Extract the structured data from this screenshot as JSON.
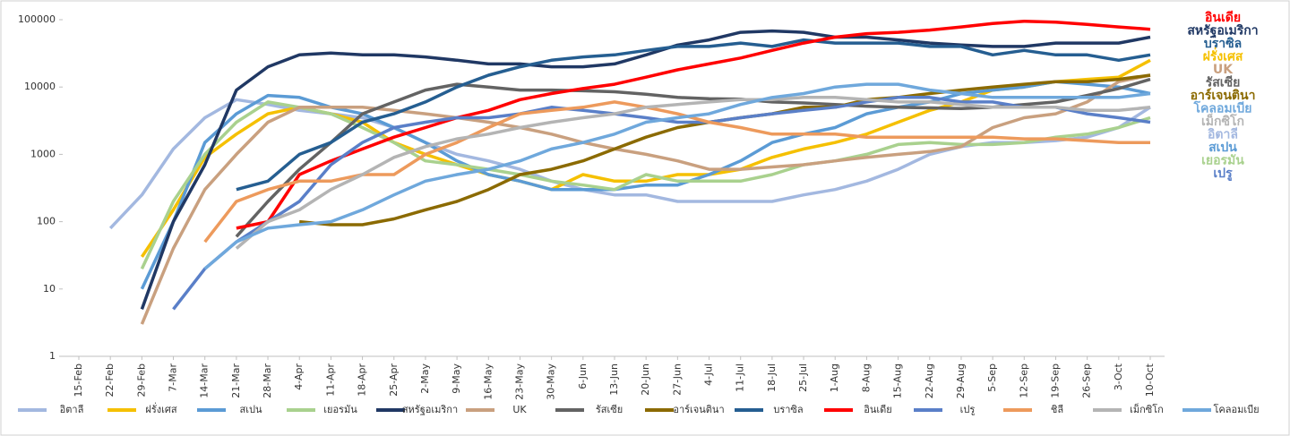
{
  "chart_data": {
    "type": "line",
    "log": true,
    "grid": false,
    "legend": "bottom",
    "x": [
      "15-Feb",
      "22-Feb",
      "29-Feb",
      "7-Mar",
      "14-Mar",
      "21-Mar",
      "28-Mar",
      "4-Apr",
      "11-Apr",
      "18-Apr",
      "25-Apr",
      "2-May",
      "9-May",
      "16-May",
      "23-May",
      "30-May",
      "6-Jun",
      "13-Jun",
      "20-Jun",
      "27-Jun",
      "4-Jul",
      "11-Jul",
      "18-Jul",
      "25-Jul",
      "1-Aug",
      "8-Aug",
      "15-Aug",
      "22-Aug",
      "29-Aug",
      "5-Sep",
      "12-Sep",
      "19-Sep",
      "26-Sep",
      "3-Oct",
      "10-Oct"
    ],
    "ylim": [
      1,
      100000
    ],
    "yticks": [
      1,
      10,
      100,
      1000,
      10000,
      100000
    ],
    "series": [
      {
        "name": "อิตาลี",
        "color": "#a3b8e0",
        "values": [
          null,
          80,
          250,
          1200,
          3500,
          6500,
          5500,
          4500,
          4000,
          3500,
          2500,
          1500,
          1000,
          800,
          600,
          400,
          300,
          250,
          250,
          200,
          200,
          200,
          200,
          250,
          300,
          400,
          600,
          1000,
          1300,
          1500,
          1500,
          1600,
          1800,
          2500,
          5000
        ]
      },
      {
        "name": "ฝรั่งเศส",
        "color": "#f5c000",
        "values": [
          null,
          null,
          30,
          150,
          900,
          2000,
          4000,
          5000,
          4000,
          3000,
          1500,
          1000,
          700,
          500,
          400,
          300,
          500,
          400,
          400,
          500,
          500,
          600,
          900,
          1200,
          1500,
          2000,
          3000,
          4500,
          6000,
          9000,
          10000,
          12000,
          13000,
          14000,
          25000
        ]
      },
      {
        "name": "สเปน",
        "color": "#5b9bd5",
        "values": [
          null,
          null,
          10,
          100,
          1500,
          4000,
          7500,
          7000,
          5000,
          4000,
          2500,
          1500,
          800,
          500,
          400,
          300,
          300,
          300,
          350,
          350,
          500,
          800,
          1500,
          2000,
          2500,
          4000,
          5000,
          6000,
          8000,
          9000,
          10000,
          12000,
          11000,
          10000,
          8000
        ]
      },
      {
        "name": "เยอรมัน",
        "color": "#a9d18e",
        "values": [
          null,
          null,
          20,
          200,
          1000,
          3000,
          6000,
          5000,
          4000,
          2500,
          1500,
          800,
          700,
          600,
          500,
          400,
          350,
          300,
          500,
          400,
          400,
          400,
          500,
          700,
          800,
          1000,
          1400,
          1500,
          1400,
          1400,
          1500,
          1800,
          2000,
          2500,
          3500
        ]
      },
      {
        "name": "สหรัฐอเมริกา",
        "color": "#203864",
        "values": [
          null,
          null,
          5,
          100,
          700,
          9000,
          20000,
          30000,
          32000,
          30000,
          30000,
          28000,
          25000,
          22000,
          22000,
          20000,
          20000,
          22000,
          30000,
          42000,
          50000,
          65000,
          68000,
          65000,
          55000,
          55000,
          50000,
          45000,
          42000,
          40000,
          40000,
          45000,
          45000,
          45000,
          55000
        ]
      },
      {
        "name": "UK",
        "color": "#c9a07f",
        "values": [
          null,
          null,
          3,
          40,
          300,
          1000,
          3000,
          5000,
          5000,
          5000,
          4500,
          4000,
          3500,
          3000,
          2500,
          2000,
          1500,
          1200,
          1000,
          800,
          600,
          600,
          650,
          700,
          800,
          900,
          1000,
          1100,
          1300,
          2500,
          3500,
          4000,
          6000,
          12000,
          15000
        ]
      },
      {
        "name": "รัสเซีย",
        "color": "#636363",
        "values": [
          null,
          null,
          null,
          null,
          null,
          60,
          200,
          600,
          1500,
          4000,
          6000,
          9000,
          11000,
          10000,
          9000,
          9000,
          8800,
          8500,
          7800,
          7000,
          6700,
          6600,
          6000,
          5800,
          5500,
          5200,
          5000,
          4900,
          4800,
          5000,
          5500,
          6000,
          7500,
          9500,
          13000
        ]
      },
      {
        "name": "อาร์เจนตินา",
        "color": "#8b6a00",
        "values": [
          null,
          null,
          null,
          null,
          null,
          null,
          null,
          100,
          90,
          90,
          110,
          150,
          200,
          300,
          500,
          600,
          800,
          1200,
          1800,
          2500,
          3000,
          3500,
          4000,
          5000,
          5000,
          6500,
          7000,
          8000,
          9000,
          10000,
          11000,
          12000,
          12000,
          13000,
          15000
        ]
      },
      {
        "name": "บราซิล",
        "color": "#255e91",
        "values": [
          null,
          null,
          null,
          null,
          null,
          300,
          400,
          1000,
          1500,
          3000,
          4000,
          6000,
          10000,
          15000,
          20000,
          25000,
          28000,
          30000,
          35000,
          40000,
          40000,
          45000,
          40000,
          50000,
          45000,
          45000,
          45000,
          40000,
          40000,
          30000,
          35000,
          30000,
          30000,
          25000,
          30000
        ]
      },
      {
        "name": "อินเดีย",
        "color": "#ff0000",
        "values": [
          null,
          null,
          null,
          null,
          null,
          80,
          100,
          500,
          800,
          1200,
          1800,
          2500,
          3500,
          4500,
          6500,
          8000,
          9500,
          11000,
          14000,
          18000,
          22000,
          27000,
          35000,
          45000,
          55000,
          62000,
          65000,
          70000,
          78000,
          88000,
          95000,
          92000,
          85000,
          78000,
          72000
        ]
      },
      {
        "name": "เปรู",
        "color": "#5a7fc8",
        "values": [
          null,
          null,
          null,
          5,
          20,
          50,
          100,
          200,
          700,
          1500,
          2500,
          3000,
          3500,
          3500,
          4000,
          5000,
          4500,
          4000,
          3500,
          3000,
          3000,
          3500,
          4000,
          4500,
          5000,
          6000,
          7000,
          7000,
          6000,
          6000,
          5000,
          5000,
          4000,
          3500,
          3000
        ]
      },
      {
        "name": "ชิลี",
        "color": "#ed9a5c",
        "values": [
          null,
          null,
          null,
          null,
          50,
          200,
          300,
          400,
          400,
          500,
          500,
          1000,
          1500,
          2500,
          4000,
          4500,
          5000,
          6000,
          5000,
          4000,
          3000,
          2500,
          2000,
          2000,
          2000,
          1800,
          1800,
          1800,
          1800,
          1800,
          1700,
          1700,
          1600,
          1500,
          1500
        ]
      },
      {
        "name": "เม็กซิโก",
        "color": "#b4b4b4",
        "values": [
          null,
          null,
          null,
          null,
          null,
          40,
          100,
          150,
          300,
          500,
          900,
          1300,
          1700,
          2000,
          2500,
          3000,
          3500,
          4000,
          5000,
          5500,
          6000,
          6500,
          6500,
          7000,
          7000,
          6500,
          6000,
          6000,
          5500,
          5000,
          5000,
          5000,
          4500,
          4500,
          5000
        ]
      },
      {
        "name": "โคลอมเบีย",
        "color": "#6fa8dc",
        "values": [
          null,
          null,
          null,
          null,
          20,
          50,
          80,
          90,
          100,
          150,
          250,
          400,
          500,
          600,
          800,
          1200,
          1500,
          2000,
          3000,
          3500,
          4000,
          5500,
          7000,
          8000,
          10000,
          11000,
          11000,
          9000,
          8000,
          7000,
          7000,
          7000,
          7000,
          7000,
          8000
        ]
      }
    ]
  }
}
